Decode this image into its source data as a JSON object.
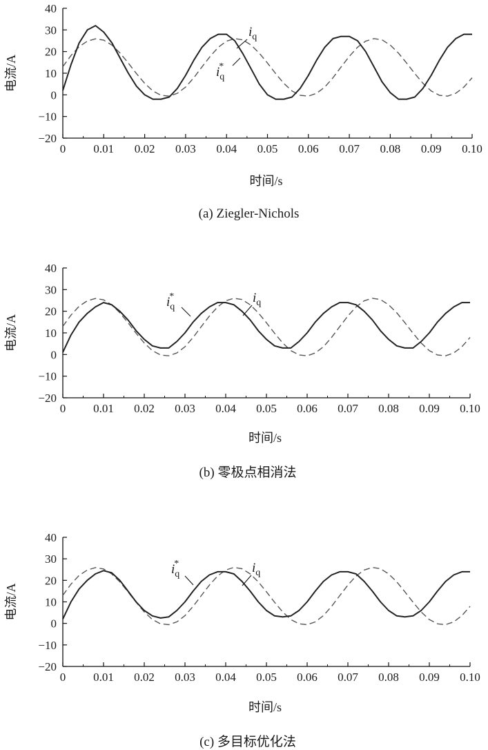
{
  "chart_data": [
    {
      "type": "line",
      "caption": "(a) Ziegler-Nichols",
      "xlabel": "时间/s",
      "ylabel": "电流/A",
      "xlim": [
        0,
        0.1
      ],
      "ylim": [
        -20,
        40
      ],
      "xticks": [
        "0",
        "0.01",
        "0.02",
        "0.03",
        "0.04",
        "0.05",
        "0.06",
        "0.07",
        "0.08",
        "0.09",
        "0.10"
      ],
      "yticks": [
        "40",
        "30",
        "20",
        "10",
        "0",
        "−10",
        "−20"
      ],
      "annotations": [
        {
          "symbol": "i",
          "subscript": "q",
          "superscript": ""
        },
        {
          "symbol": "i",
          "subscript": "q",
          "superscript": "*"
        }
      ],
      "series": [
        {
          "name": "iq",
          "style": "solid",
          "color": "#222222",
          "x": [
            0,
            0.002,
            0.004,
            0.006,
            0.008,
            0.01,
            0.012,
            0.014,
            0.016,
            0.018,
            0.02,
            0.022,
            0.024,
            0.026,
            0.028,
            0.03,
            0.032,
            0.034,
            0.036,
            0.038,
            0.04,
            0.042,
            0.044,
            0.046,
            0.048,
            0.05,
            0.052,
            0.054,
            0.056,
            0.058,
            0.06,
            0.062,
            0.064,
            0.066,
            0.068,
            0.07,
            0.072,
            0.074,
            0.076,
            0.078,
            0.08,
            0.082,
            0.084,
            0.086,
            0.088,
            0.09,
            0.092,
            0.094,
            0.096,
            0.098,
            0.1
          ],
          "y": [
            2,
            14,
            24,
            30,
            32,
            29,
            24,
            17,
            10,
            4,
            0,
            -2,
            -2,
            -1,
            3,
            9,
            16,
            22,
            26,
            28,
            28,
            25,
            19,
            12,
            5,
            0,
            -2,
            -2,
            -1,
            3,
            9,
            16,
            22,
            26,
            27,
            27,
            25,
            20,
            13,
            6,
            1,
            -2,
            -2,
            -1,
            3,
            9,
            16,
            22,
            26,
            28,
            28
          ]
        },
        {
          "name": "iq*",
          "style": "dashed",
          "color": "#555555",
          "x": [
            0,
            0.002,
            0.004,
            0.006,
            0.008,
            0.01,
            0.012,
            0.014,
            0.016,
            0.018,
            0.02,
            0.022,
            0.024,
            0.026,
            0.028,
            0.03,
            0.032,
            0.034,
            0.036,
            0.038,
            0.04,
            0.042,
            0.044,
            0.046,
            0.048,
            0.05,
            0.052,
            0.054,
            0.056,
            0.058,
            0.06,
            0.062,
            0.064,
            0.066,
            0.068,
            0.07,
            0.072,
            0.074,
            0.076,
            0.078,
            0.08,
            0.082,
            0.084,
            0.086,
            0.088,
            0.09,
            0.092,
            0.094,
            0.096,
            0.098,
            0.1
          ],
          "y": [
            13,
            18.2,
            22.3,
            24.8,
            25.9,
            25.3,
            23.0,
            19.3,
            14.7,
            9.8,
            5.3,
            1.8,
            -0.2,
            -0.6,
            0.7,
            3.6,
            7.9,
            12.9,
            17.8,
            22.0,
            24.8,
            26.0,
            25.4,
            23.0,
            19.3,
            14.7,
            9.8,
            5.3,
            1.8,
            -0.2,
            -0.6,
            0.7,
            3.6,
            7.9,
            12.9,
            17.8,
            22.0,
            24.8,
            26.0,
            25.4,
            23.0,
            19.3,
            14.7,
            9.8,
            5.3,
            1.8,
            -0.2,
            -0.6,
            0.7,
            3.6,
            7.9
          ]
        }
      ]
    },
    {
      "type": "line",
      "caption": "(b) 零极点相消法",
      "xlabel": "时间/s",
      "ylabel": "电流/A",
      "xlim": [
        0,
        0.1
      ],
      "ylim": [
        -20,
        40
      ],
      "xticks": [
        "0",
        "0.01",
        "0.02",
        "0.03",
        "0.04",
        "0.05",
        "0.06",
        "0.07",
        "0.08",
        "0.09",
        "0.10"
      ],
      "yticks": [
        "40",
        "30",
        "20",
        "10",
        "0",
        "−10",
        "−20"
      ],
      "annotations": [
        {
          "symbol": "i",
          "subscript": "q",
          "superscript": "*"
        },
        {
          "symbol": "i",
          "subscript": "q",
          "superscript": ""
        }
      ],
      "series": [
        {
          "name": "iq",
          "style": "solid",
          "color": "#222222",
          "x": [
            0,
            0.002,
            0.004,
            0.006,
            0.008,
            0.01,
            0.012,
            0.014,
            0.016,
            0.018,
            0.02,
            0.022,
            0.024,
            0.026,
            0.028,
            0.03,
            0.032,
            0.034,
            0.036,
            0.038,
            0.04,
            0.042,
            0.044,
            0.046,
            0.048,
            0.05,
            0.052,
            0.054,
            0.056,
            0.058,
            0.06,
            0.062,
            0.064,
            0.066,
            0.068,
            0.07,
            0.072,
            0.074,
            0.076,
            0.078,
            0.08,
            0.082,
            0.084,
            0.086,
            0.088,
            0.09,
            0.092,
            0.094,
            0.096,
            0.098,
            0.1
          ],
          "y": [
            1,
            9,
            15,
            19,
            22,
            24,
            23,
            20,
            16,
            11,
            7,
            4,
            3,
            3,
            6,
            10,
            15,
            19,
            22,
            24,
            24,
            23,
            20,
            16,
            11,
            7,
            4,
            3,
            3,
            6,
            10,
            15,
            19,
            22,
            24,
            24,
            23,
            20,
            16,
            11,
            7,
            4,
            3,
            3,
            6,
            10,
            15,
            19,
            22,
            24,
            24
          ]
        },
        {
          "name": "iq*",
          "style": "dashed",
          "color": "#555555",
          "x": [
            0,
            0.002,
            0.004,
            0.006,
            0.008,
            0.01,
            0.012,
            0.014,
            0.016,
            0.018,
            0.02,
            0.022,
            0.024,
            0.026,
            0.028,
            0.03,
            0.032,
            0.034,
            0.036,
            0.038,
            0.04,
            0.042,
            0.044,
            0.046,
            0.048,
            0.05,
            0.052,
            0.054,
            0.056,
            0.058,
            0.06,
            0.062,
            0.064,
            0.066,
            0.068,
            0.07,
            0.072,
            0.074,
            0.076,
            0.078,
            0.08,
            0.082,
            0.084,
            0.086,
            0.088,
            0.09,
            0.092,
            0.094,
            0.096,
            0.098,
            0.1
          ],
          "y": [
            13,
            18.2,
            22.3,
            24.8,
            25.9,
            25.3,
            23.0,
            19.3,
            14.7,
            9.8,
            5.3,
            1.8,
            -0.2,
            -0.6,
            0.7,
            3.6,
            7.9,
            12.9,
            17.8,
            22.0,
            24.8,
            26.0,
            25.4,
            23.0,
            19.3,
            14.7,
            9.8,
            5.3,
            1.8,
            -0.2,
            -0.6,
            0.7,
            3.6,
            7.9,
            12.9,
            17.8,
            22.0,
            24.8,
            26.0,
            25.4,
            23.0,
            19.3,
            14.7,
            9.8,
            5.3,
            1.8,
            -0.2,
            -0.6,
            0.7,
            3.6,
            7.9
          ]
        }
      ]
    },
    {
      "type": "line",
      "caption": "(c) 多目标优化法",
      "xlabel": "时间/s",
      "ylabel": "电流/A",
      "xlim": [
        0,
        0.1
      ],
      "ylim": [
        -20,
        40
      ],
      "xticks": [
        "0",
        "0.01",
        "0.02",
        "0.03",
        "0.04",
        "0.05",
        "0.06",
        "0.07",
        "0.08",
        "0.09",
        "0.10"
      ],
      "yticks": [
        "40",
        "30",
        "20",
        "10",
        "0",
        "−10",
        "−20"
      ],
      "annotations": [
        {
          "symbol": "i",
          "subscript": "q",
          "superscript": "*"
        },
        {
          "symbol": "i",
          "subscript": "q",
          "superscript": ""
        }
      ],
      "series": [
        {
          "name": "iq",
          "style": "solid",
          "color": "#222222",
          "x": [
            0,
            0.002,
            0.004,
            0.006,
            0.008,
            0.01,
            0.012,
            0.014,
            0.016,
            0.018,
            0.02,
            0.022,
            0.024,
            0.026,
            0.028,
            0.03,
            0.032,
            0.034,
            0.036,
            0.038,
            0.04,
            0.042,
            0.044,
            0.046,
            0.048,
            0.05,
            0.052,
            0.054,
            0.056,
            0.058,
            0.06,
            0.062,
            0.064,
            0.066,
            0.068,
            0.07,
            0.072,
            0.074,
            0.076,
            0.078,
            0.08,
            0.082,
            0.084,
            0.086,
            0.088,
            0.09,
            0.092,
            0.094,
            0.096,
            0.098,
            0.1
          ],
          "y": [
            2,
            10,
            16,
            20,
            23,
            24.5,
            23.5,
            20,
            15,
            10,
            6,
            3.5,
            2.5,
            3,
            6,
            10,
            15,
            19.5,
            22.5,
            24,
            24,
            23,
            19.5,
            15,
            10,
            6,
            3.5,
            3,
            3.5,
            6,
            10,
            15,
            19.5,
            22.5,
            24,
            24,
            23,
            19.5,
            15,
            10,
            6,
            3.5,
            3,
            3.5,
            6,
            10,
            15,
            19.5,
            22.5,
            24,
            24
          ]
        },
        {
          "name": "iq*",
          "style": "dashed",
          "color": "#555555",
          "x": [
            0,
            0.002,
            0.004,
            0.006,
            0.008,
            0.01,
            0.012,
            0.014,
            0.016,
            0.018,
            0.02,
            0.022,
            0.024,
            0.026,
            0.028,
            0.03,
            0.032,
            0.034,
            0.036,
            0.038,
            0.04,
            0.042,
            0.044,
            0.046,
            0.048,
            0.05,
            0.052,
            0.054,
            0.056,
            0.058,
            0.06,
            0.062,
            0.064,
            0.066,
            0.068,
            0.07,
            0.072,
            0.074,
            0.076,
            0.078,
            0.08,
            0.082,
            0.084,
            0.086,
            0.088,
            0.09,
            0.092,
            0.094,
            0.096,
            0.098,
            0.1
          ],
          "y": [
            13,
            18.2,
            22.3,
            24.8,
            25.9,
            25.3,
            23.0,
            19.3,
            14.7,
            9.8,
            5.3,
            1.8,
            -0.2,
            -0.6,
            0.7,
            3.6,
            7.9,
            12.9,
            17.8,
            22.0,
            24.8,
            26.0,
            25.4,
            23.0,
            19.3,
            14.7,
            9.8,
            5.3,
            1.8,
            -0.2,
            -0.6,
            0.7,
            3.6,
            7.9,
            12.9,
            17.8,
            22.0,
            24.8,
            26.0,
            25.4,
            23.0,
            19.3,
            14.7,
            9.8,
            5.3,
            1.8,
            -0.2,
            -0.6,
            0.7,
            3.6,
            7.9
          ]
        }
      ]
    }
  ]
}
